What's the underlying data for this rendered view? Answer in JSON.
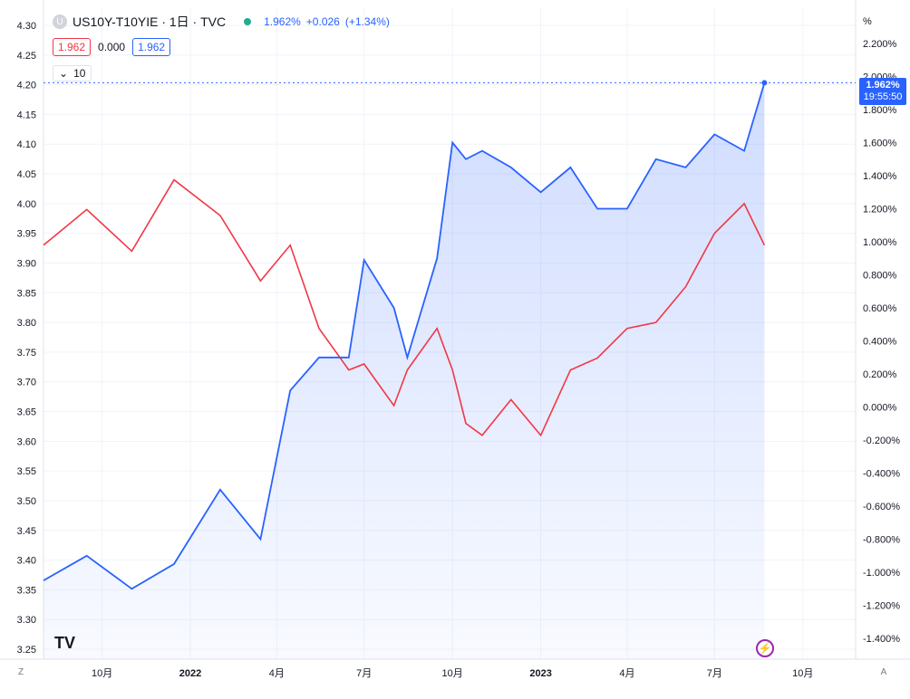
{
  "header": {
    "symbol_icon": "U",
    "title": "US10Y-T10YIE · 1日 · TVC",
    "last": "1.962%",
    "change": "+0.026",
    "change_pct": "(+1.34%)",
    "box_left": "1.962",
    "box_mid": "0.000",
    "box_right": "1.962",
    "collapse_icon": "chevron-down-icon",
    "collapse_label": "10"
  },
  "price_tag": {
    "value": "1.962%",
    "time": "19:55:50"
  },
  "buttons": {
    "zoom_left": "Z",
    "auto_scale": "A"
  },
  "logo": "TV",
  "chart_data": {
    "type": "line",
    "title": "US10Y-T10YIE · 1日 · TVC",
    "x": [
      "2021-08-01",
      "2021-09-15",
      "2021-11-01",
      "2021-12-15",
      "2022-02-01",
      "2022-03-15",
      "2022-04-15",
      "2022-05-15",
      "2022-06-15",
      "2022-07-01",
      "2022-08-01",
      "2022-08-15",
      "2022-09-15",
      "2022-10-01",
      "2022-10-15",
      "2022-11-01",
      "2022-12-01",
      "2023-01-01",
      "2023-02-01",
      "2023-03-01",
      "2023-04-01",
      "2023-05-01",
      "2023-06-01",
      "2023-07-01",
      "2023-08-01",
      "2023-08-22"
    ],
    "series": [
      {
        "axis": "left",
        "color": "#f23645",
        "values": [
          3.93,
          3.99,
          3.92,
          4.04,
          3.98,
          3.87,
          3.93,
          3.79,
          3.72,
          3.73,
          3.66,
          3.72,
          3.79,
          3.72,
          3.63,
          3.61,
          3.67,
          3.61,
          3.72,
          3.74,
          3.79,
          3.8,
          3.86,
          3.95,
          4.0,
          3.93
        ]
      },
      {
        "axis": "right",
        "color": "#2962ff",
        "values": [
          -1.05,
          -0.9,
          -1.1,
          -0.95,
          -0.5,
          -0.8,
          0.1,
          0.3,
          0.3,
          0.89,
          0.6,
          0.3,
          0.9,
          1.6,
          1.5,
          1.55,
          1.45,
          1.3,
          1.45,
          1.2,
          1.2,
          1.5,
          1.45,
          1.65,
          1.55,
          1.962
        ]
      }
    ],
    "y_left": {
      "ticks": [
        "4.30",
        "4.25",
        "4.20",
        "4.15",
        "4.10",
        "4.05",
        "4.00",
        "3.95",
        "3.90",
        "3.85",
        "3.80",
        "3.75",
        "3.70",
        "3.65",
        "3.60",
        "3.55",
        "3.50",
        "3.45",
        "3.40",
        "3.35",
        "3.30",
        "3.25"
      ],
      "min": 3.25,
      "max": 4.3
    },
    "y_right": {
      "unit": "%",
      "ticks": [
        "2.200%",
        "2.000%",
        "1.800%",
        "1.600%",
        "1.400%",
        "1.200%",
        "1.000%",
        "0.800%",
        "0.600%",
        "0.400%",
        "0.200%",
        "0.000%",
        "-0.200%",
        "-0.400%",
        "-0.600%",
        "-0.800%",
        "-1.000%",
        "-1.200%",
        "-1.400%"
      ],
      "min": -1.4,
      "max": 2.2
    },
    "x_ticks": [
      {
        "label": "10月",
        "date": "2021-10-01"
      },
      {
        "label": "2022",
        "date": "2022-01-01"
      },
      {
        "label": "4月",
        "date": "2022-04-01"
      },
      {
        "label": "7月",
        "date": "2022-07-01"
      },
      {
        "label": "10月",
        "date": "2022-10-01"
      },
      {
        "label": "2023",
        "date": "2023-01-01"
      },
      {
        "label": "4月",
        "date": "2023-04-01"
      },
      {
        "label": "7月",
        "date": "2023-07-01"
      },
      {
        "label": "10月",
        "date": "2023-10-01"
      }
    ],
    "grid": true,
    "colors": {
      "red": "#f23645",
      "blue": "#2962ff",
      "area": "#2962ff",
      "grid": "#f0f3fa",
      "text": "#131722"
    }
  }
}
